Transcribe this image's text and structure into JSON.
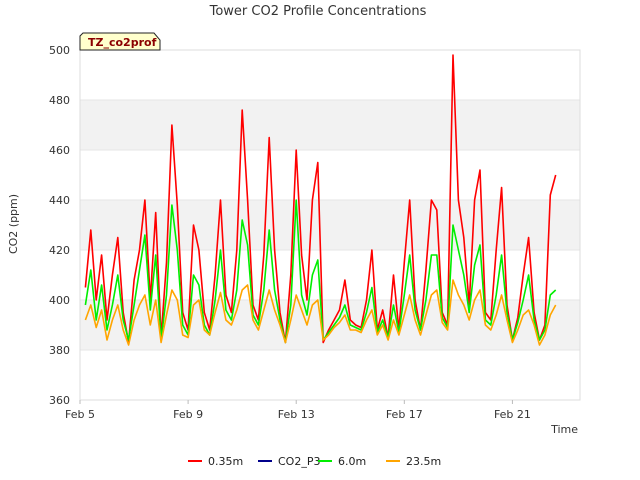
{
  "chart_data": {
    "type": "line",
    "title": "Tower CO2 Profile Concentrations",
    "badge": "TZ_co2prof",
    "xlabel": "Time",
    "ylabel": "CO2 (ppm)",
    "ylim": [
      360,
      500
    ],
    "yticks": [
      360,
      380,
      400,
      420,
      440,
      460,
      480,
      500
    ],
    "xlim_days": [
      5,
      23.5
    ],
    "xticks": [
      {
        "day": 5,
        "label": "Feb 5"
      },
      {
        "day": 9,
        "label": "Feb 9"
      },
      {
        "day": 13,
        "label": "Feb 13"
      },
      {
        "day": 17,
        "label": "Feb 17"
      },
      {
        "day": 21,
        "label": "Feb 21"
      }
    ],
    "grid": "horizontal alternating bands",
    "legend_position": "bottom",
    "series": [
      {
        "name": "0.35m",
        "color": "#ff0000",
        "x": [
          5.2,
          5.4,
          5.6,
          5.8,
          6.0,
          6.2,
          6.4,
          6.6,
          6.8,
          7.0,
          7.2,
          7.4,
          7.6,
          7.8,
          8.0,
          8.2,
          8.4,
          8.6,
          8.8,
          9.0,
          9.2,
          9.4,
          9.6,
          9.8,
          10.0,
          10.2,
          10.4,
          10.6,
          10.8,
          11.0,
          11.2,
          11.4,
          11.6,
          11.8,
          12.0,
          12.2,
          12.4,
          12.6,
          12.8,
          13.0,
          13.2,
          13.4,
          13.6,
          13.8,
          14.0,
          14.2,
          14.4,
          14.6,
          14.8,
          15.0,
          15.2,
          15.4,
          15.6,
          15.8,
          16.0,
          16.2,
          16.4,
          16.6,
          16.8,
          17.0,
          17.2,
          17.4,
          17.6,
          17.8,
          18.0,
          18.2,
          18.4,
          18.6,
          18.8,
          19.0,
          19.2,
          19.4,
          19.6,
          19.8,
          20.0,
          20.2,
          20.4,
          20.6,
          20.8,
          21.0,
          21.2,
          21.4,
          21.6,
          21.8,
          22.0,
          22.2,
          22.4,
          22.6
        ],
        "y": [
          405,
          428,
          400,
          418,
          392,
          410,
          425,
          395,
          383,
          408,
          420,
          440,
          400,
          435,
          385,
          415,
          470,
          438,
          395,
          388,
          430,
          420,
          395,
          388,
          410,
          440,
          402,
          395,
          420,
          476,
          440,
          398,
          392,
          418,
          465,
          420,
          395,
          383,
          410,
          460,
          418,
          400,
          440,
          455,
          383,
          388,
          392,
          396,
          408,
          392,
          390,
          389,
          400,
          420,
          388,
          396,
          385,
          410,
          388,
          415,
          440,
          400,
          388,
          412,
          440,
          436,
          395,
          390,
          498,
          440,
          425,
          398,
          440,
          452,
          395,
          392,
          420,
          445,
          398,
          384,
          393,
          410,
          425,
          395,
          384,
          390,
          442,
          450
        ]
      },
      {
        "name": "CO2_P3",
        "color": "#00008b",
        "x": [],
        "y": []
      },
      {
        "name": "6.0m",
        "color": "#00ee00",
        "x": [
          5.2,
          5.4,
          5.6,
          5.8,
          6.0,
          6.2,
          6.4,
          6.6,
          6.8,
          7.0,
          7.2,
          7.4,
          7.6,
          7.8,
          8.0,
          8.2,
          8.4,
          8.6,
          8.8,
          9.0,
          9.2,
          9.4,
          9.6,
          9.8,
          10.0,
          10.2,
          10.4,
          10.6,
          10.8,
          11.0,
          11.2,
          11.4,
          11.6,
          11.8,
          12.0,
          12.2,
          12.4,
          12.6,
          12.8,
          13.0,
          13.2,
          13.4,
          13.6,
          13.8,
          14.0,
          14.2,
          14.4,
          14.6,
          14.8,
          15.0,
          15.2,
          15.4,
          15.6,
          15.8,
          16.0,
          16.2,
          16.4,
          16.6,
          16.8,
          17.0,
          17.2,
          17.4,
          17.6,
          17.8,
          18.0,
          18.2,
          18.4,
          18.6,
          18.8,
          19.0,
          19.2,
          19.4,
          19.6,
          19.8,
          20.0,
          20.2,
          20.4,
          20.6,
          20.8,
          21.0,
          21.2,
          21.4,
          21.6,
          21.8,
          22.0,
          22.2,
          22.4,
          22.6
        ],
        "y": [
          398,
          412,
          392,
          406,
          388,
          398,
          410,
          392,
          384,
          398,
          412,
          426,
          396,
          418,
          384,
          402,
          438,
          420,
          390,
          386,
          410,
          406,
          390,
          386,
          400,
          420,
          396,
          392,
          404,
          432,
          422,
          394,
          390,
          404,
          428,
          404,
          392,
          383,
          398,
          440,
          402,
          394,
          410,
          416,
          384,
          387,
          390,
          393,
          398,
          390,
          389,
          388,
          395,
          405,
          387,
          392,
          385,
          398,
          387,
          402,
          418,
          396,
          388,
          400,
          418,
          418,
          393,
          389,
          430,
          420,
          410,
          395,
          414,
          422,
          392,
          390,
          402,
          418,
          395,
          384,
          391,
          400,
          410,
          392,
          384,
          388,
          402,
          404
        ]
      },
      {
        "name": "23.5m",
        "color": "#ffa500",
        "x": [
          5.2,
          5.4,
          5.6,
          5.8,
          6.0,
          6.2,
          6.4,
          6.6,
          6.8,
          7.0,
          7.2,
          7.4,
          7.6,
          7.8,
          8.0,
          8.2,
          8.4,
          8.6,
          8.8,
          9.0,
          9.2,
          9.4,
          9.6,
          9.8,
          10.0,
          10.2,
          10.4,
          10.6,
          10.8,
          11.0,
          11.2,
          11.4,
          11.6,
          11.8,
          12.0,
          12.2,
          12.4,
          12.6,
          12.8,
          13.0,
          13.2,
          13.4,
          13.6,
          13.8,
          14.0,
          14.2,
          14.4,
          14.6,
          14.8,
          15.0,
          15.2,
          15.4,
          15.6,
          15.8,
          16.0,
          16.2,
          16.4,
          16.6,
          16.8,
          17.0,
          17.2,
          17.4,
          17.6,
          17.8,
          18.0,
          18.2,
          18.4,
          18.6,
          18.8,
          19.0,
          19.2,
          19.4,
          19.6,
          19.8,
          20.0,
          20.2,
          20.4,
          20.6,
          20.8,
          21.0,
          21.2,
          21.4,
          21.6,
          21.8,
          22.0,
          22.2,
          22.4,
          22.6
        ],
        "y": [
          392,
          398,
          389,
          396,
          384,
          392,
          398,
          388,
          382,
          392,
          398,
          402,
          390,
          400,
          383,
          394,
          404,
          400,
          386,
          385,
          398,
          400,
          388,
          386,
          395,
          403,
          392,
          390,
          396,
          404,
          406,
          392,
          388,
          396,
          404,
          396,
          390,
          383,
          392,
          402,
          396,
          390,
          398,
          400,
          384,
          386,
          389,
          391,
          394,
          388,
          388,
          387,
          392,
          396,
          386,
          390,
          384,
          392,
          386,
          394,
          402,
          392,
          386,
          394,
          402,
          404,
          391,
          388,
          408,
          402,
          398,
          392,
          400,
          404,
          390,
          388,
          394,
          402,
          392,
          383,
          388,
          394,
          396,
          390,
          382,
          386,
          394,
          398
        ]
      }
    ]
  }
}
